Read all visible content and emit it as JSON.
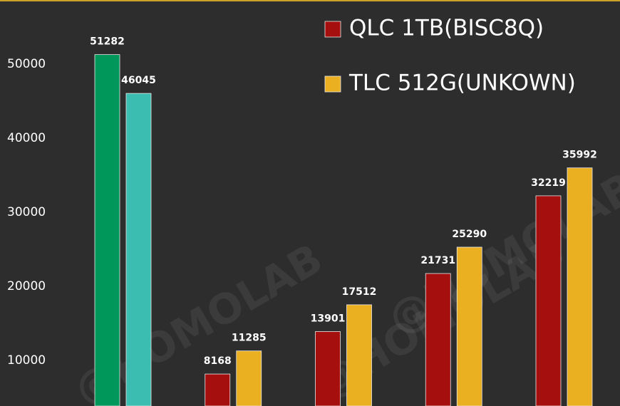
{
  "chart_data": {
    "type": "bar",
    "categories": [
      null,
      null,
      null,
      null,
      null
    ],
    "series": [
      {
        "name": "QLC 1TB(BISC8Q)",
        "color": "#a50f0d",
        "colors": [
          "#00975a",
          "#a50f0d",
          "#a50f0d",
          "#a50f0d",
          "#a50f0d"
        ],
        "values": [
          51282,
          8168,
          13901,
          21731,
          32219
        ]
      },
      {
        "name": "TLC 512G(UNKOWN)",
        "color": "#ebb021",
        "colors": [
          "#3cbdb1",
          "#ebb021",
          "#ebb021",
          "#ebb021",
          "#ebb021"
        ],
        "values": [
          46045,
          11285,
          17512,
          25290,
          35992
        ]
      }
    ],
    "ylim": [
      3850,
      58650
    ],
    "yticks": [
      10000,
      20000,
      30000,
      40000,
      50000
    ],
    "grid": false,
    "legend": "top-right",
    "watermark": "@HOMOLAB"
  }
}
